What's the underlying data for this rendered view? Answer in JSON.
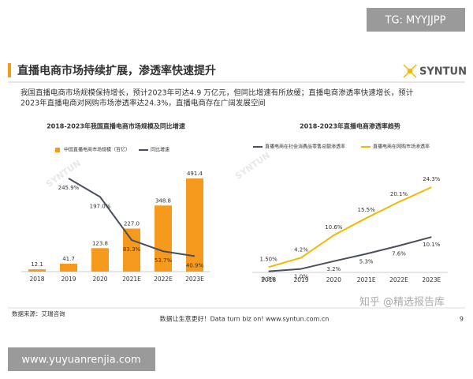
{
  "badge": "TG: MYYJJPP",
  "header": {
    "title": "直播电商市场持续扩展，渗透率快速提升",
    "logo": "SYNTUN"
  },
  "description": [
    "我国直播电商市场规模保持增长，预计2023年可达4.9 万亿元，但同比增速有所放缓；直播电商渗透率快速增长，预计",
    "2023年直播电商对网购市场渗透率达24.3%，直播电商存在广阔发展空间"
  ],
  "chart_data": [
    {
      "type": "bar",
      "title": "2018-2023年我国直播电商市场规模及同比增速",
      "categories": [
        "2018",
        "2019",
        "2020",
        "2021E",
        "2022E",
        "2023E"
      ],
      "ylim": [
        0,
        500
      ],
      "y2lim": [
        0,
        250
      ],
      "series": [
        {
          "name": "中国直播电商市场规模（百亿）",
          "type": "bar",
          "color": "#f59a1c",
          "values": [
            12.1,
            41.7,
            123.8,
            227.0,
            348.8,
            491.4
          ],
          "value_labels": [
            "12.1",
            "41.7",
            "123.8",
            "227.0",
            "348.8",
            "491.4"
          ]
        },
        {
          "name": "同比增速",
          "type": "line",
          "axis": "y2",
          "color": "#4a4f5c",
          "values": [
            null,
            245.9,
            197.0,
            83.3,
            53.7,
            40.9
          ],
          "value_labels": [
            null,
            "245.9%",
            "197.0%",
            "83.3%",
            "53.7%",
            "40.9%"
          ]
        }
      ]
    },
    {
      "type": "line",
      "title": "2018-2023年直播电商渗透率趋势",
      "categories": [
        "2018",
        "2019",
        "2020",
        "2021E",
        "2022E",
        "2023E"
      ],
      "ylim": [
        0,
        25
      ],
      "series": [
        {
          "name": "直播电商在社会消费品零售总额渗透率",
          "type": "line",
          "color": "#4a4f5c",
          "values": [
            0.3,
            1.0,
            3.2,
            5.3,
            7.6,
            10.1
          ],
          "value_labels": [
            "0.3%",
            "1.0%",
            "3.2%",
            "5.3%",
            "7.6%",
            "10.1%"
          ]
        },
        {
          "name": "直播电商在网购市场渗透率",
          "type": "line",
          "color": "#f5b800",
          "values": [
            1.5,
            4.2,
            10.6,
            15.5,
            20.1,
            24.3
          ],
          "value_labels": [
            "1.50%",
            "4.2%",
            "10.6%",
            "15.5%",
            "20.1%",
            "24.3%"
          ]
        }
      ]
    }
  ],
  "watermarks": [
    "SYNTUN",
    "SYNTUN"
  ],
  "footer": {
    "source": "数据来源：艾瑞咨询",
    "slogan": "数据让生意更好！Data turn biz on! www.syntun.com.cn",
    "page": "9"
  },
  "overlay": "知乎 @精选报告库",
  "site": "www.yuyuanrenjia.com"
}
